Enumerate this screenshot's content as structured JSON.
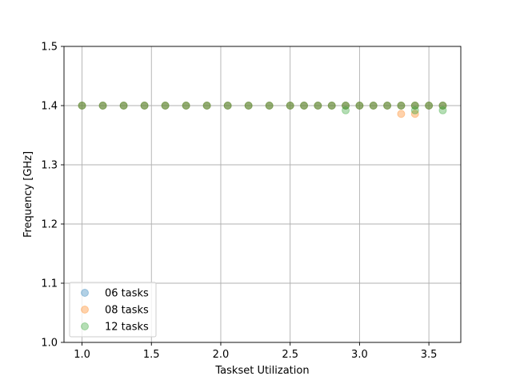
{
  "chart_data": {
    "type": "scatter",
    "xlabel": "Taskset Utilization",
    "ylabel": "Frequency [GHz]",
    "xlim": [
      0.87,
      3.73
    ],
    "ylim": [
      1.0,
      1.5
    ],
    "xticks": [
      1.0,
      1.5,
      2.0,
      2.5,
      3.0,
      3.5
    ],
    "xtick_labels": [
      "1.0",
      "1.5",
      "2.0",
      "2.5",
      "3.0",
      "3.5"
    ],
    "yticks": [
      1.0,
      1.1,
      1.2,
      1.3,
      1.4,
      1.5
    ],
    "ytick_labels": [
      "1.0",
      "1.1",
      "1.2",
      "1.3",
      "1.4",
      "1.5"
    ],
    "grid": true,
    "legend_position": "lower-left",
    "series": [
      {
        "name": "06 tasks",
        "color": "#1f77b4",
        "points": [
          [
            1.0,
            1.4
          ],
          [
            1.15,
            1.4
          ],
          [
            1.3,
            1.4
          ],
          [
            1.45,
            1.4
          ],
          [
            1.6,
            1.4
          ],
          [
            1.75,
            1.4
          ],
          [
            1.9,
            1.4
          ],
          [
            2.05,
            1.4
          ],
          [
            2.2,
            1.4
          ],
          [
            2.35,
            1.4
          ],
          [
            2.5,
            1.4
          ],
          [
            2.6,
            1.4
          ],
          [
            2.7,
            1.4
          ],
          [
            2.8,
            1.4
          ],
          [
            2.9,
            1.4
          ],
          [
            3.0,
            1.4
          ],
          [
            3.1,
            1.4
          ],
          [
            3.2,
            1.4
          ],
          [
            3.3,
            1.4
          ],
          [
            3.4,
            1.4
          ],
          [
            3.5,
            1.4
          ],
          [
            3.6,
            1.4
          ]
        ]
      },
      {
        "name": "08 tasks",
        "color": "#ff7f0e",
        "points": [
          [
            1.0,
            1.4
          ],
          [
            1.15,
            1.4
          ],
          [
            1.3,
            1.4
          ],
          [
            1.45,
            1.4
          ],
          [
            1.6,
            1.4
          ],
          [
            1.75,
            1.4
          ],
          [
            1.9,
            1.4
          ],
          [
            2.05,
            1.4
          ],
          [
            2.2,
            1.4
          ],
          [
            2.35,
            1.4
          ],
          [
            2.5,
            1.4
          ],
          [
            2.6,
            1.4
          ],
          [
            2.7,
            1.4
          ],
          [
            2.8,
            1.4
          ],
          [
            2.9,
            1.4
          ],
          [
            3.0,
            1.4
          ],
          [
            3.1,
            1.4
          ],
          [
            3.2,
            1.4
          ],
          [
            3.3,
            1.4
          ],
          [
            3.3,
            1.386
          ],
          [
            3.4,
            1.4
          ],
          [
            3.4,
            1.386
          ],
          [
            3.5,
            1.4
          ],
          [
            3.6,
            1.4
          ]
        ]
      },
      {
        "name": "12 tasks",
        "color": "#2ca02c",
        "points": [
          [
            1.0,
            1.4
          ],
          [
            1.15,
            1.4
          ],
          [
            1.3,
            1.4
          ],
          [
            1.45,
            1.4
          ],
          [
            1.6,
            1.4
          ],
          [
            1.75,
            1.4
          ],
          [
            1.9,
            1.4
          ],
          [
            2.05,
            1.4
          ],
          [
            2.2,
            1.4
          ],
          [
            2.35,
            1.4
          ],
          [
            2.5,
            1.4
          ],
          [
            2.6,
            1.4
          ],
          [
            2.7,
            1.4
          ],
          [
            2.8,
            1.4
          ],
          [
            2.9,
            1.4
          ],
          [
            2.9,
            1.392
          ],
          [
            3.0,
            1.4
          ],
          [
            3.1,
            1.4
          ],
          [
            3.2,
            1.4
          ],
          [
            3.3,
            1.4
          ],
          [
            3.4,
            1.4
          ],
          [
            3.4,
            1.392
          ],
          [
            3.5,
            1.4
          ],
          [
            3.6,
            1.4
          ],
          [
            3.6,
            1.392
          ]
        ]
      }
    ]
  }
}
